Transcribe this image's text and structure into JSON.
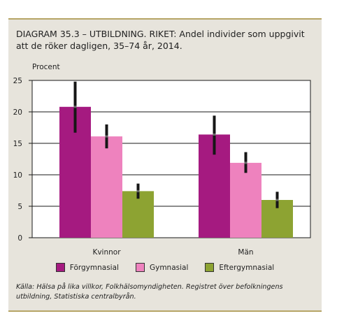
{
  "figure": {
    "title": "DIAGRAM 35.3 – UTBILDNING. RIKET: Andel individer som uppgivit att de röker dagligen, 35–74 år, 2014.",
    "source": "Källa: Hälsa på lika villkor, Folkhälsomyndigheten. Registret över befolkningens utbildning, Statistiska centralbyrån."
  },
  "chart_data": {
    "type": "bar",
    "ylabel": "Procent",
    "xlabel": "",
    "ylim": [
      0,
      25
    ],
    "yticks": [
      "0",
      "5",
      "10",
      "15",
      "20",
      "25"
    ],
    "grid": true,
    "legend_position": "bottom",
    "categories": [
      "Kvinnor",
      "Män"
    ],
    "series": [
      {
        "name": "Förgymnasial",
        "color": "#a51a80",
        "values": [
          20.8,
          16.4
        ],
        "ci": [
          [
            16.7,
            24.8
          ],
          [
            13.2,
            19.4
          ]
        ]
      },
      {
        "name": "Gymnasial",
        "color": "#ee82be",
        "values": [
          16.1,
          11.9
        ],
        "ci": [
          [
            14.2,
            18.0
          ],
          [
            10.3,
            13.6
          ]
        ]
      },
      {
        "name": "Eftergymnasial",
        "color": "#8da332",
        "values": [
          7.4,
          6.0
        ],
        "ci": [
          [
            6.2,
            8.6
          ],
          [
            4.7,
            7.3
          ]
        ]
      }
    ]
  }
}
